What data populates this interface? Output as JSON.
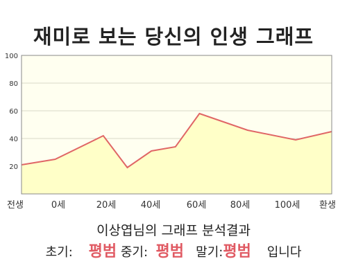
{
  "title": "재미로 보는 당신의 인생 그래프",
  "chart_data": {
    "type": "area",
    "x_labels": [
      "전생",
      "0세",
      "20세",
      "40세",
      "60세",
      "80세",
      "100세",
      "환생"
    ],
    "points": [
      {
        "x": -14,
        "y": 21
      },
      {
        "x": 0,
        "y": 25
      },
      {
        "x": 20,
        "y": 42
      },
      {
        "x": 30,
        "y": 19
      },
      {
        "x": 40,
        "y": 31
      },
      {
        "x": 50,
        "y": 34
      },
      {
        "x": 60,
        "y": 58
      },
      {
        "x": 70,
        "y": 52
      },
      {
        "x": 80,
        "y": 46
      },
      {
        "x": 100,
        "y": 39
      },
      {
        "x": 115,
        "y": 45
      }
    ],
    "xlim": [
      -14,
      115
    ],
    "ylim": [
      0,
      100
    ],
    "yticks": [
      20,
      40,
      60,
      80,
      100
    ],
    "colors": {
      "line": "#e06666",
      "fill": "#ffffc8",
      "background": "#fffff0"
    }
  },
  "analysis": "이상엽님의 그래프 분석결과",
  "stages": {
    "early_label": "초기:",
    "early_value": "평범",
    "mid_label": "중기:",
    "mid_value": "평범",
    "late_label": "말기:",
    "late_value": "평범",
    "suffix": "입니다"
  }
}
